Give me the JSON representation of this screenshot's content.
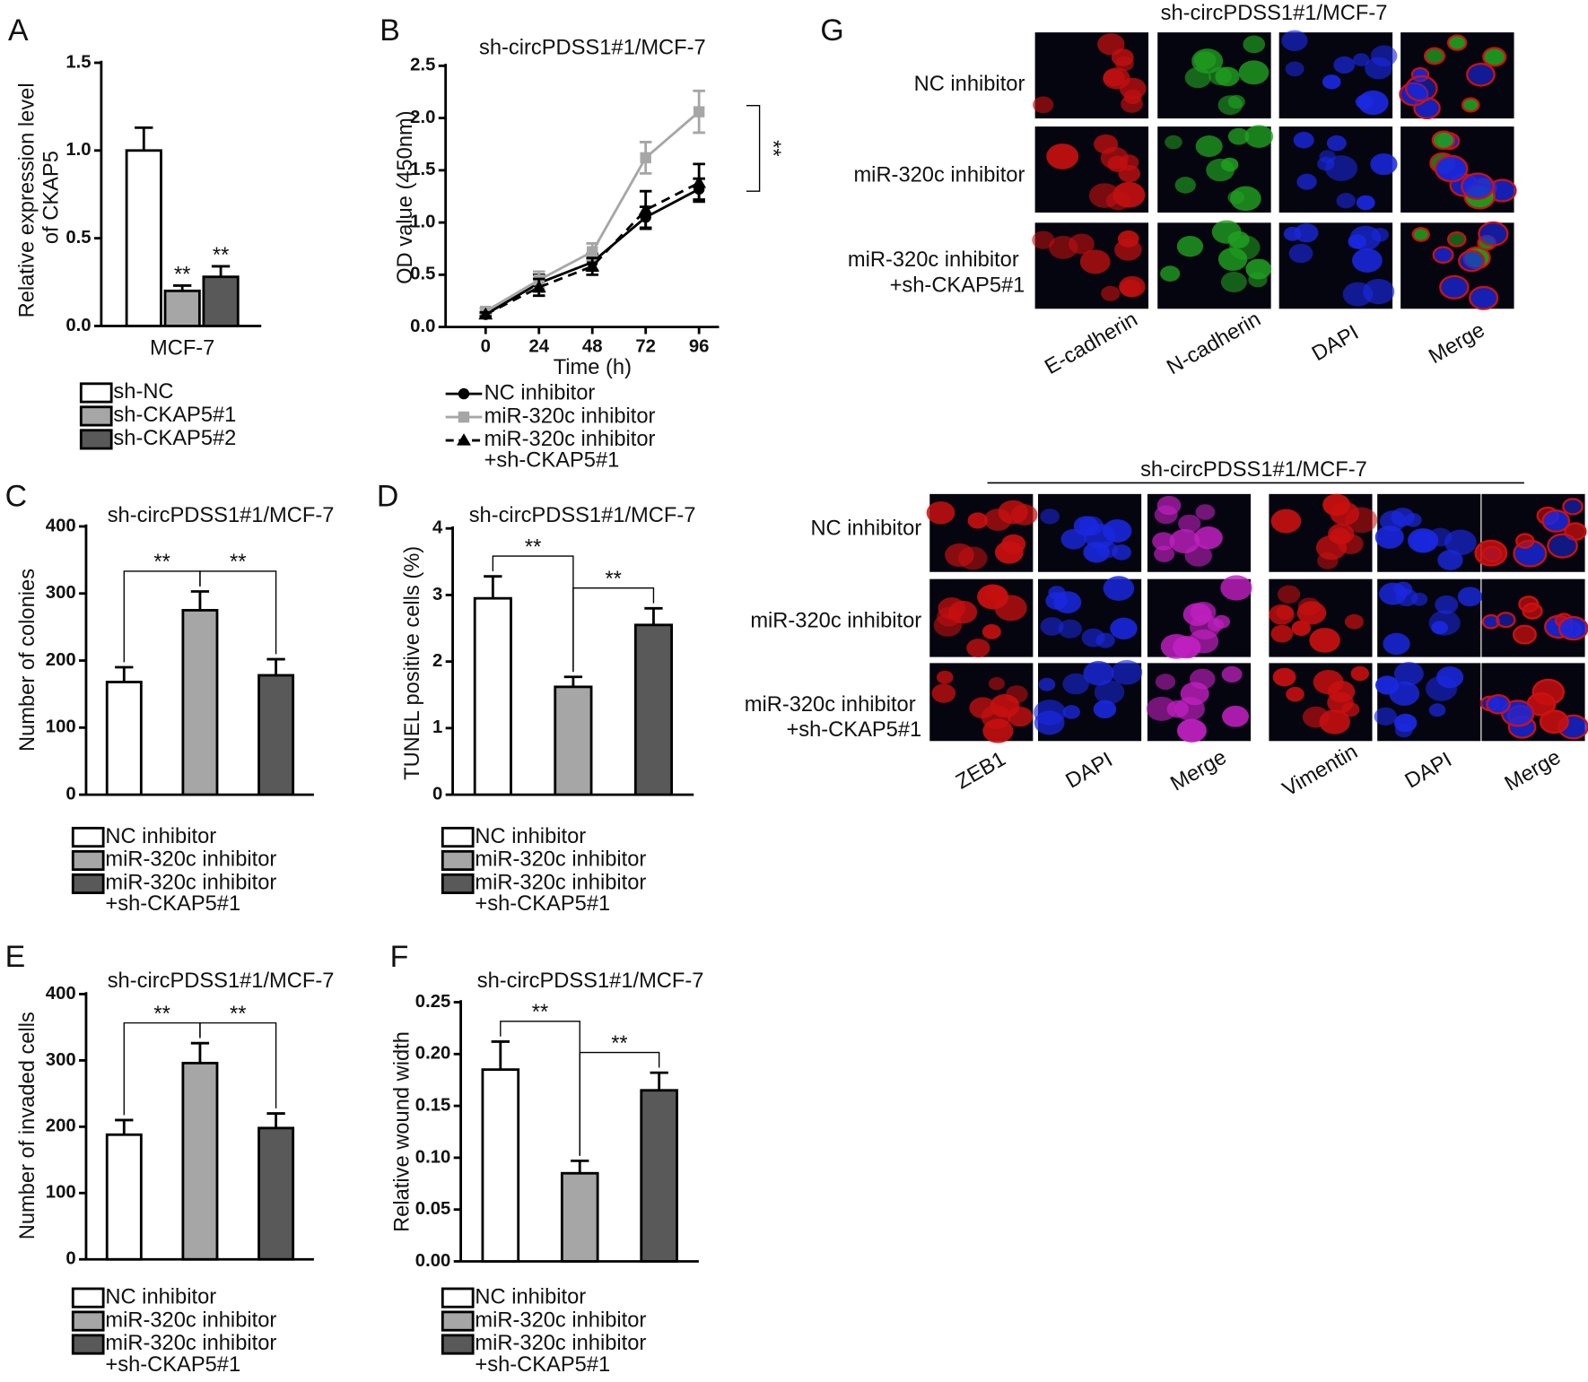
{
  "chart_data": [
    {
      "type": "bar",
      "panel": "A",
      "y_label": "Relative expression level\nof CKAP5",
      "categories": [
        "MCF-7"
      ],
      "series": [
        {
          "name": "sh-NC",
          "color": "#ffffff",
          "values": [
            1.0
          ],
          "errors": [
            0.13
          ]
        },
        {
          "name": "sh-CKAP5#1",
          "color": "#a6a6a6",
          "values": [
            0.2
          ],
          "errors": [
            0.03
          ]
        },
        {
          "name": "sh-CKAP5#2",
          "color": "#595959",
          "values": [
            0.28
          ],
          "errors": [
            0.06
          ]
        }
      ],
      "ylim": [
        0,
        1.5
      ],
      "yticks": [
        {
          "value": 0,
          "label": "0.0"
        },
        {
          "value": 0.5,
          "label": "0.5"
        },
        {
          "value": 1,
          "label": "1.0"
        },
        {
          "value": 1.5,
          "label": "1.5"
        }
      ],
      "annotations": [
        "**",
        "**"
      ]
    },
    {
      "type": "line",
      "panel": "B",
      "title": "sh-circPDSS1#1/MCF-7",
      "x_label": "Time (h)",
      "y_label": "OD value (450nm)",
      "x": [
        0,
        24,
        48,
        72,
        96
      ],
      "xlim": [
        -18,
        105
      ],
      "xticks": [
        0,
        24,
        48,
        72,
        96
      ],
      "series": [
        {
          "name": "NC inhibitor",
          "color": "#000000",
          "marker": "circle",
          "line_style": "solid",
          "values": [
            0.12,
            0.42,
            0.62,
            1.05,
            1.32
          ],
          "errors": [
            0.02,
            0.08,
            0.08,
            0.1,
            0.1
          ]
        },
        {
          "name": "miR-320c inhibitor",
          "color": "#a6a6a6",
          "marker": "square",
          "line_style": "solid",
          "values": [
            0.15,
            0.45,
            0.72,
            1.62,
            2.06
          ],
          "errors": [
            0.03,
            0.08,
            0.08,
            0.15,
            0.2
          ]
        },
        {
          "name": "miR-320c inhibitor\n+sh-CKAP5#1",
          "color": "#000000",
          "marker": "triangle",
          "line_style": "dashed",
          "values": [
            0.12,
            0.38,
            0.58,
            1.12,
            1.38
          ],
          "errors": [
            0.02,
            0.08,
            0.08,
            0.18,
            0.18
          ]
        }
      ],
      "ylim": [
        0,
        2.5
      ],
      "yticks": [
        {
          "value": 0,
          "label": "0.0"
        },
        {
          "value": 0.5,
          "label": "0.5"
        },
        {
          "value": 1,
          "label": "1.0"
        },
        {
          "value": 1.5,
          "label": "1.5"
        },
        {
          "value": 2,
          "label": "2.0"
        },
        {
          "value": 2.5,
          "label": "2.5"
        }
      ],
      "annotations": [
        "**"
      ]
    },
    {
      "type": "bar",
      "panel": "C",
      "title": "sh-circPDSS1#1/MCF-7",
      "y_label": "Number of colonies",
      "categories": [
        null
      ],
      "series": [
        {
          "name": "NC inhibitor",
          "color": "#ffffff",
          "values": [
            168
          ],
          "errors": [
            22
          ]
        },
        {
          "name": "miR-320c inhibitor",
          "color": "#a6a6a6",
          "values": [
            275
          ],
          "errors": [
            28
          ]
        },
        {
          "name": "miR-320c inhibitor\n+sh-CKAP5#1",
          "color": "#595959",
          "values": [
            178
          ],
          "errors": [
            24
          ]
        }
      ],
      "ylim": [
        0,
        400
      ],
      "yticks": [
        0,
        100,
        200,
        300,
        400
      ],
      "annotations": [
        "**",
        "**"
      ]
    },
    {
      "type": "bar",
      "panel": "D",
      "title": "sh-circPDSS1#1/MCF-7",
      "y_label": "TUNEL positive cells (%)",
      "categories": [
        null
      ],
      "series": [
        {
          "name": "NC inhibitor",
          "color": "#ffffff",
          "values": [
            2.95
          ],
          "errors": [
            0.33
          ]
        },
        {
          "name": "miR-320c inhibitor",
          "color": "#a6a6a6",
          "values": [
            1.62
          ],
          "errors": [
            0.15
          ]
        },
        {
          "name": "miR-320c inhibitor\n+sh-CKAP5#1",
          "color": "#595959",
          "values": [
            2.55
          ],
          "errors": [
            0.25
          ]
        }
      ],
      "ylim": [
        0,
        4
      ],
      "yticks": [
        0,
        1,
        2,
        3,
        4
      ],
      "annotations": [
        "**",
        "**"
      ]
    },
    {
      "type": "bar",
      "panel": "E",
      "title": "sh-circPDSS1#1/MCF-7",
      "y_label": "Number of invaded cells",
      "categories": [
        null
      ],
      "series": [
        {
          "name": "NC inhibitor",
          "color": "#ffffff",
          "values": [
            188
          ],
          "errors": [
            22
          ]
        },
        {
          "name": "miR-320c inhibitor",
          "color": "#a6a6a6",
          "values": [
            296
          ],
          "errors": [
            30
          ]
        },
        {
          "name": "miR-320c inhibitor\n+sh-CKAP5#1",
          "color": "#595959",
          "values": [
            198
          ],
          "errors": [
            22
          ]
        }
      ],
      "ylim": [
        0,
        400
      ],
      "yticks": [
        0,
        100,
        200,
        300,
        400
      ],
      "annotations": [
        "**",
        "**"
      ]
    },
    {
      "type": "bar",
      "panel": "F",
      "title": "sh-circPDSS1#1/MCF-7",
      "y_label": "Relative wound width",
      "categories": [
        null
      ],
      "series": [
        {
          "name": "NC inhibitor",
          "color": "#ffffff",
          "values": [
            0.185
          ],
          "errors": [
            0.027
          ]
        },
        {
          "name": "miR-320c inhibitor",
          "color": "#a6a6a6",
          "values": [
            0.085
          ],
          "errors": [
            0.012
          ]
        },
        {
          "name": "miR-320c inhibitor\n+sh-CKAP5#1",
          "color": "#595959",
          "values": [
            0.165
          ],
          "errors": [
            0.017
          ]
        }
      ],
      "ylim": [
        0,
        0.25
      ],
      "yticks": [
        {
          "value": 0,
          "label": "0.00"
        },
        {
          "value": 0.05,
          "label": "0.05"
        },
        {
          "value": 0.1,
          "label": "0.10"
        },
        {
          "value": 0.15,
          "label": "0.15"
        },
        {
          "value": 0.2,
          "label": "0.20"
        },
        {
          "value": 0.25,
          "label": "0.25"
        }
      ],
      "annotations": [
        "**",
        "**"
      ]
    }
  ],
  "figure_g": {
    "panel": "G",
    "top": {
      "title": "sh-circPDSS1#1/MCF-7",
      "rows": [
        "NC inhibitor",
        "miR-320c inhibitor",
        "miR-320c inhibitor\n+sh-CKAP5#1"
      ],
      "columns": [
        "E-cadherin",
        "N-cadherin",
        "DAPI",
        "Merge"
      ]
    },
    "bottom": {
      "title": "sh-circPDSS1#1/MCF-7",
      "rows": [
        "NC inhibitor",
        "miR-320c inhibitor",
        "miR-320c inhibitor\n+sh-CKAP5#1"
      ],
      "columns": [
        "ZEB1",
        "DAPI",
        "Merge",
        "Vimentin",
        "DAPI",
        "Merge"
      ]
    }
  }
}
